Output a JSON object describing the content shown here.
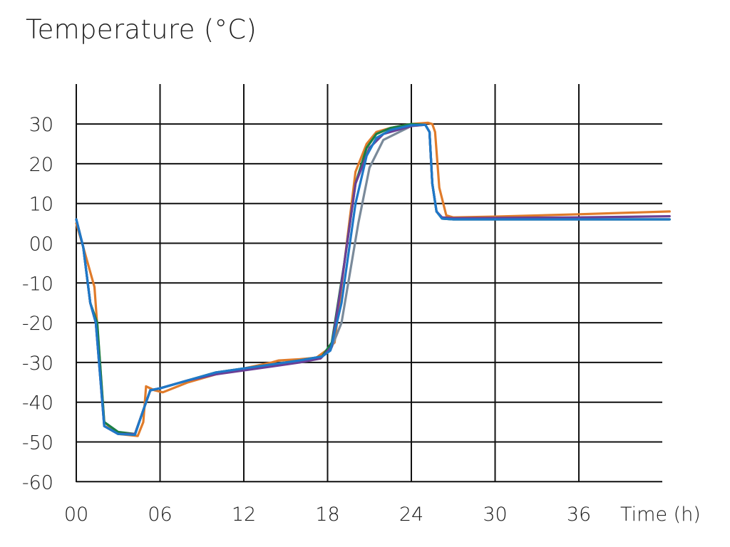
{
  "chart_data": {
    "type": "line",
    "title": "Temperature (°C)",
    "xlabel": "Time (h)",
    "ylabel": "",
    "xlim": [
      0,
      42
    ],
    "ylim": [
      -60,
      40
    ],
    "grid": true,
    "x_ticks": [
      0,
      6,
      12,
      18,
      24,
      30,
      36
    ],
    "x_tick_labels": [
      "00",
      "06",
      "12",
      "18",
      "24",
      "30",
      "36"
    ],
    "y_ticks": [
      30,
      20,
      10,
      0,
      -10,
      -20,
      -30,
      -40,
      -50,
      -60
    ],
    "y_tick_labels": [
      "30",
      "20",
      "10",
      "00",
      "-10",
      "-20",
      "-30",
      "-40",
      "-50",
      "-60"
    ],
    "series": [
      {
        "color": "#e07b2a",
        "x": [
          0,
          0.5,
          1.3,
          2.0,
          3.0,
          4.4,
          4.8,
          5.0,
          5.6,
          6.2,
          8.0,
          10.0,
          12.0,
          14.0,
          14.5,
          16.0,
          17.2,
          17.9,
          18.5,
          19.2,
          20.0,
          20.8,
          21.5,
          22.5,
          24.0,
          25.2,
          25.5,
          25.7,
          26.0,
          26.5,
          27.0,
          30.0,
          36.0,
          42.5
        ],
        "y": [
          5,
          -1,
          -11,
          -45,
          -48,
          -48.5,
          -45,
          -36,
          -37,
          -37.5,
          -35,
          -33,
          -31.5,
          -30,
          -29.5,
          -29.2,
          -28.8,
          -27,
          -25,
          -5,
          18,
          25,
          28,
          29,
          30,
          30.3,
          30,
          28,
          14,
          7,
          6.5,
          6.7,
          7.3,
          8
        ]
      },
      {
        "color": "#7a8a9a",
        "x": [
          0,
          0.5,
          1.0,
          1.4,
          2.0,
          3.0,
          4.2,
          4.8,
          5.3,
          6.0,
          8.0,
          10.0,
          12.0,
          14.0,
          16.0,
          17.5,
          18.2,
          19.0,
          20.2,
          21.0,
          22.0,
          24.0,
          25.0,
          25.3,
          25.5,
          25.8,
          26.2,
          27.0,
          36.0,
          42.5
        ],
        "y": [
          6,
          -1,
          -15,
          -20,
          -46,
          -48,
          -48.2,
          -42,
          -37,
          -36.5,
          -34.5,
          -32.5,
          -31.5,
          -30.5,
          -29.5,
          -28.8,
          -27,
          -20,
          5,
          19,
          26,
          29.5,
          29.8,
          28,
          15,
          8,
          6.2,
          6,
          6,
          6
        ]
      },
      {
        "color": "#1a7f45",
        "x": [
          0,
          0.5,
          1.0,
          1.5,
          2.0,
          3.0,
          4.2,
          4.8,
          5.3,
          6.0,
          8.0,
          10.0,
          12.0,
          14.0,
          16.0,
          17.6,
          18.3,
          19.2,
          20.0,
          20.8,
          21.5,
          22.5,
          24.0,
          25.0,
          25.3,
          25.5,
          25.8,
          26.2,
          27.0,
          36.0,
          42.5
        ],
        "y": [
          6,
          -1,
          -15,
          -20,
          -45,
          -47.5,
          -48,
          -42,
          -37,
          -36.5,
          -34.5,
          -32.5,
          -31.5,
          -30.5,
          -29.5,
          -28.5,
          -25,
          -5,
          15,
          24,
          27.5,
          29,
          30,
          29.8,
          28,
          15,
          8,
          6.2,
          6,
          6,
          6
        ]
      },
      {
        "color": "#6b3f95",
        "x": [
          0,
          0.5,
          1.0,
          1.4,
          2.0,
          3.0,
          4.2,
          4.8,
          5.3,
          6.0,
          8.0,
          10.0,
          12.0,
          14.0,
          16.0,
          17.5,
          18.3,
          19.0,
          20.0,
          21.0,
          22.0,
          24.0,
          25.0,
          25.3,
          25.5,
          25.8,
          26.2,
          27.0,
          36.0,
          42.5
        ],
        "y": [
          6,
          -1,
          -15,
          -20,
          -46,
          -48,
          -48,
          -42,
          -37,
          -36.5,
          -34.5,
          -33,
          -32,
          -31,
          -30,
          -29,
          -26,
          -10,
          15,
          24,
          27.5,
          29.5,
          29.8,
          28,
          15,
          8,
          6.5,
          6.3,
          6.5,
          6.8
        ]
      },
      {
        "color": "#1e78c8",
        "x": [
          0,
          0.5,
          1.0,
          1.4,
          2.0,
          3.0,
          4.2,
          4.8,
          5.3,
          6.0,
          8.0,
          10.0,
          12.0,
          14.0,
          16.0,
          17.6,
          18.2,
          19.0,
          20.0,
          20.8,
          21.5,
          22.5,
          24.0,
          25.0,
          25.3,
          25.5,
          25.8,
          26.2,
          27.0,
          36.0,
          42.5
        ],
        "y": [
          6,
          -1,
          -15,
          -20,
          -46,
          -48,
          -48.2,
          -42,
          -37,
          -36.5,
          -34.5,
          -32.5,
          -31.5,
          -30.5,
          -29.5,
          -28.5,
          -27,
          -15,
          10,
          22,
          26.5,
          28.5,
          29.7,
          29.8,
          28,
          15,
          8,
          6.2,
          6,
          6,
          6
        ]
      }
    ]
  }
}
